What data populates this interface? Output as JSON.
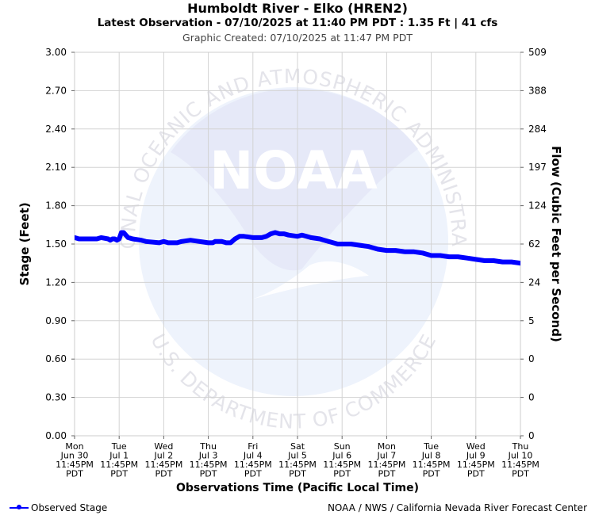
{
  "header": {
    "title": "Humboldt River - Elko (HREN2)",
    "subtitle": "Latest Observation - 07/10/2025 at 11:40 PM PDT : 1.35 Ft | 41 cfs",
    "created": "Graphic Created: 07/10/2025 at 11:47 PM PDT"
  },
  "watermark": {
    "logo_text": "NOAA",
    "ring_top": "NATIONAL OCEANIC AND ATMOSPHERIC ADMINISTRATION",
    "ring_bottom": "U.S. DEPARTMENT OF COMMERCE"
  },
  "legend": {
    "label": "Observed Stage"
  },
  "footer": {
    "credit": "NOAA / NWS / California Nevada River Forecast Center"
  },
  "colors": {
    "series": "#0000ff",
    "grid": "#d3d3d3",
    "watermark": "#e8ecfa"
  },
  "chart_data": {
    "type": "line",
    "ylabel": "Stage (Feet)",
    "y2label": "Flow (Cubic Feet per Second)",
    "xlabel": "Observations Time (Pacific Local Time)",
    "ylim": [
      0,
      3
    ],
    "yticks": [
      "0.00",
      "0.30",
      "0.60",
      "0.90",
      "1.20",
      "1.50",
      "1.80",
      "2.10",
      "2.40",
      "2.70",
      "3.00"
    ],
    "y2ticks": [
      "0",
      "0",
      "0",
      "5",
      "24",
      "62",
      "124",
      "197",
      "284",
      "388",
      "509"
    ],
    "xlim": [
      0,
      10
    ],
    "xticks": [
      [
        "Mon",
        "Jun 30",
        "11:45PM",
        "PDT"
      ],
      [
        "Tue",
        "Jul 1",
        "11:45PM",
        "PDT"
      ],
      [
        "Wed",
        "Jul 2",
        "11:45PM",
        "PDT"
      ],
      [
        "Thu",
        "Jul 3",
        "11:45PM",
        "PDT"
      ],
      [
        "Fri",
        "Jul 4",
        "11:45PM",
        "PDT"
      ],
      [
        "Sat",
        "Jul 5",
        "11:45PM",
        "PDT"
      ],
      [
        "Sun",
        "Jul 6",
        "11:45PM",
        "PDT"
      ],
      [
        "Mon",
        "Jul 7",
        "11:45PM",
        "PDT"
      ],
      [
        "Tue",
        "Jul 8",
        "11:45PM",
        "PDT"
      ],
      [
        "Wed",
        "Jul 9",
        "11:45PM",
        "PDT"
      ],
      [
        "Thu",
        "Jul 10",
        "11:45PM",
        "PDT"
      ]
    ],
    "grid": true,
    "series": [
      {
        "name": "Observed Stage",
        "x": [
          0,
          0.1,
          0.2,
          0.5,
          0.6,
          0.75,
          0.8,
          0.85,
          0.9,
          0.95,
          1.0,
          1.05,
          1.1,
          1.15,
          1.2,
          1.3,
          1.5,
          1.6,
          1.9,
          2.0,
          2.1,
          2.3,
          2.4,
          2.6,
          2.8,
          3.0,
          3.1,
          3.15,
          3.2,
          3.3,
          3.4,
          3.5,
          3.6,
          3.7,
          3.8,
          4.0,
          4.2,
          4.3,
          4.4,
          4.5,
          4.6,
          4.7,
          4.8,
          5.0,
          5.1,
          5.2,
          5.3,
          5.5,
          5.6,
          5.8,
          5.9,
          6.0,
          6.2,
          6.4,
          6.6,
          6.8,
          7.0,
          7.2,
          7.4,
          7.6,
          7.8,
          8.0,
          8.2,
          8.4,
          8.6,
          8.8,
          9.0,
          9.2,
          9.4,
          9.6,
          9.8,
          10.0
        ],
        "y": [
          1.55,
          1.54,
          1.54,
          1.54,
          1.55,
          1.54,
          1.53,
          1.54,
          1.54,
          1.53,
          1.54,
          1.59,
          1.59,
          1.57,
          1.55,
          1.54,
          1.53,
          1.52,
          1.51,
          1.52,
          1.51,
          1.51,
          1.52,
          1.53,
          1.52,
          1.51,
          1.51,
          1.52,
          1.52,
          1.52,
          1.51,
          1.51,
          1.54,
          1.56,
          1.56,
          1.55,
          1.55,
          1.56,
          1.58,
          1.59,
          1.58,
          1.58,
          1.57,
          1.56,
          1.57,
          1.56,
          1.55,
          1.54,
          1.53,
          1.51,
          1.5,
          1.5,
          1.5,
          1.49,
          1.48,
          1.46,
          1.45,
          1.45,
          1.44,
          1.44,
          1.43,
          1.41,
          1.41,
          1.4,
          1.4,
          1.39,
          1.38,
          1.37,
          1.37,
          1.36,
          1.36,
          1.35
        ]
      }
    ]
  }
}
